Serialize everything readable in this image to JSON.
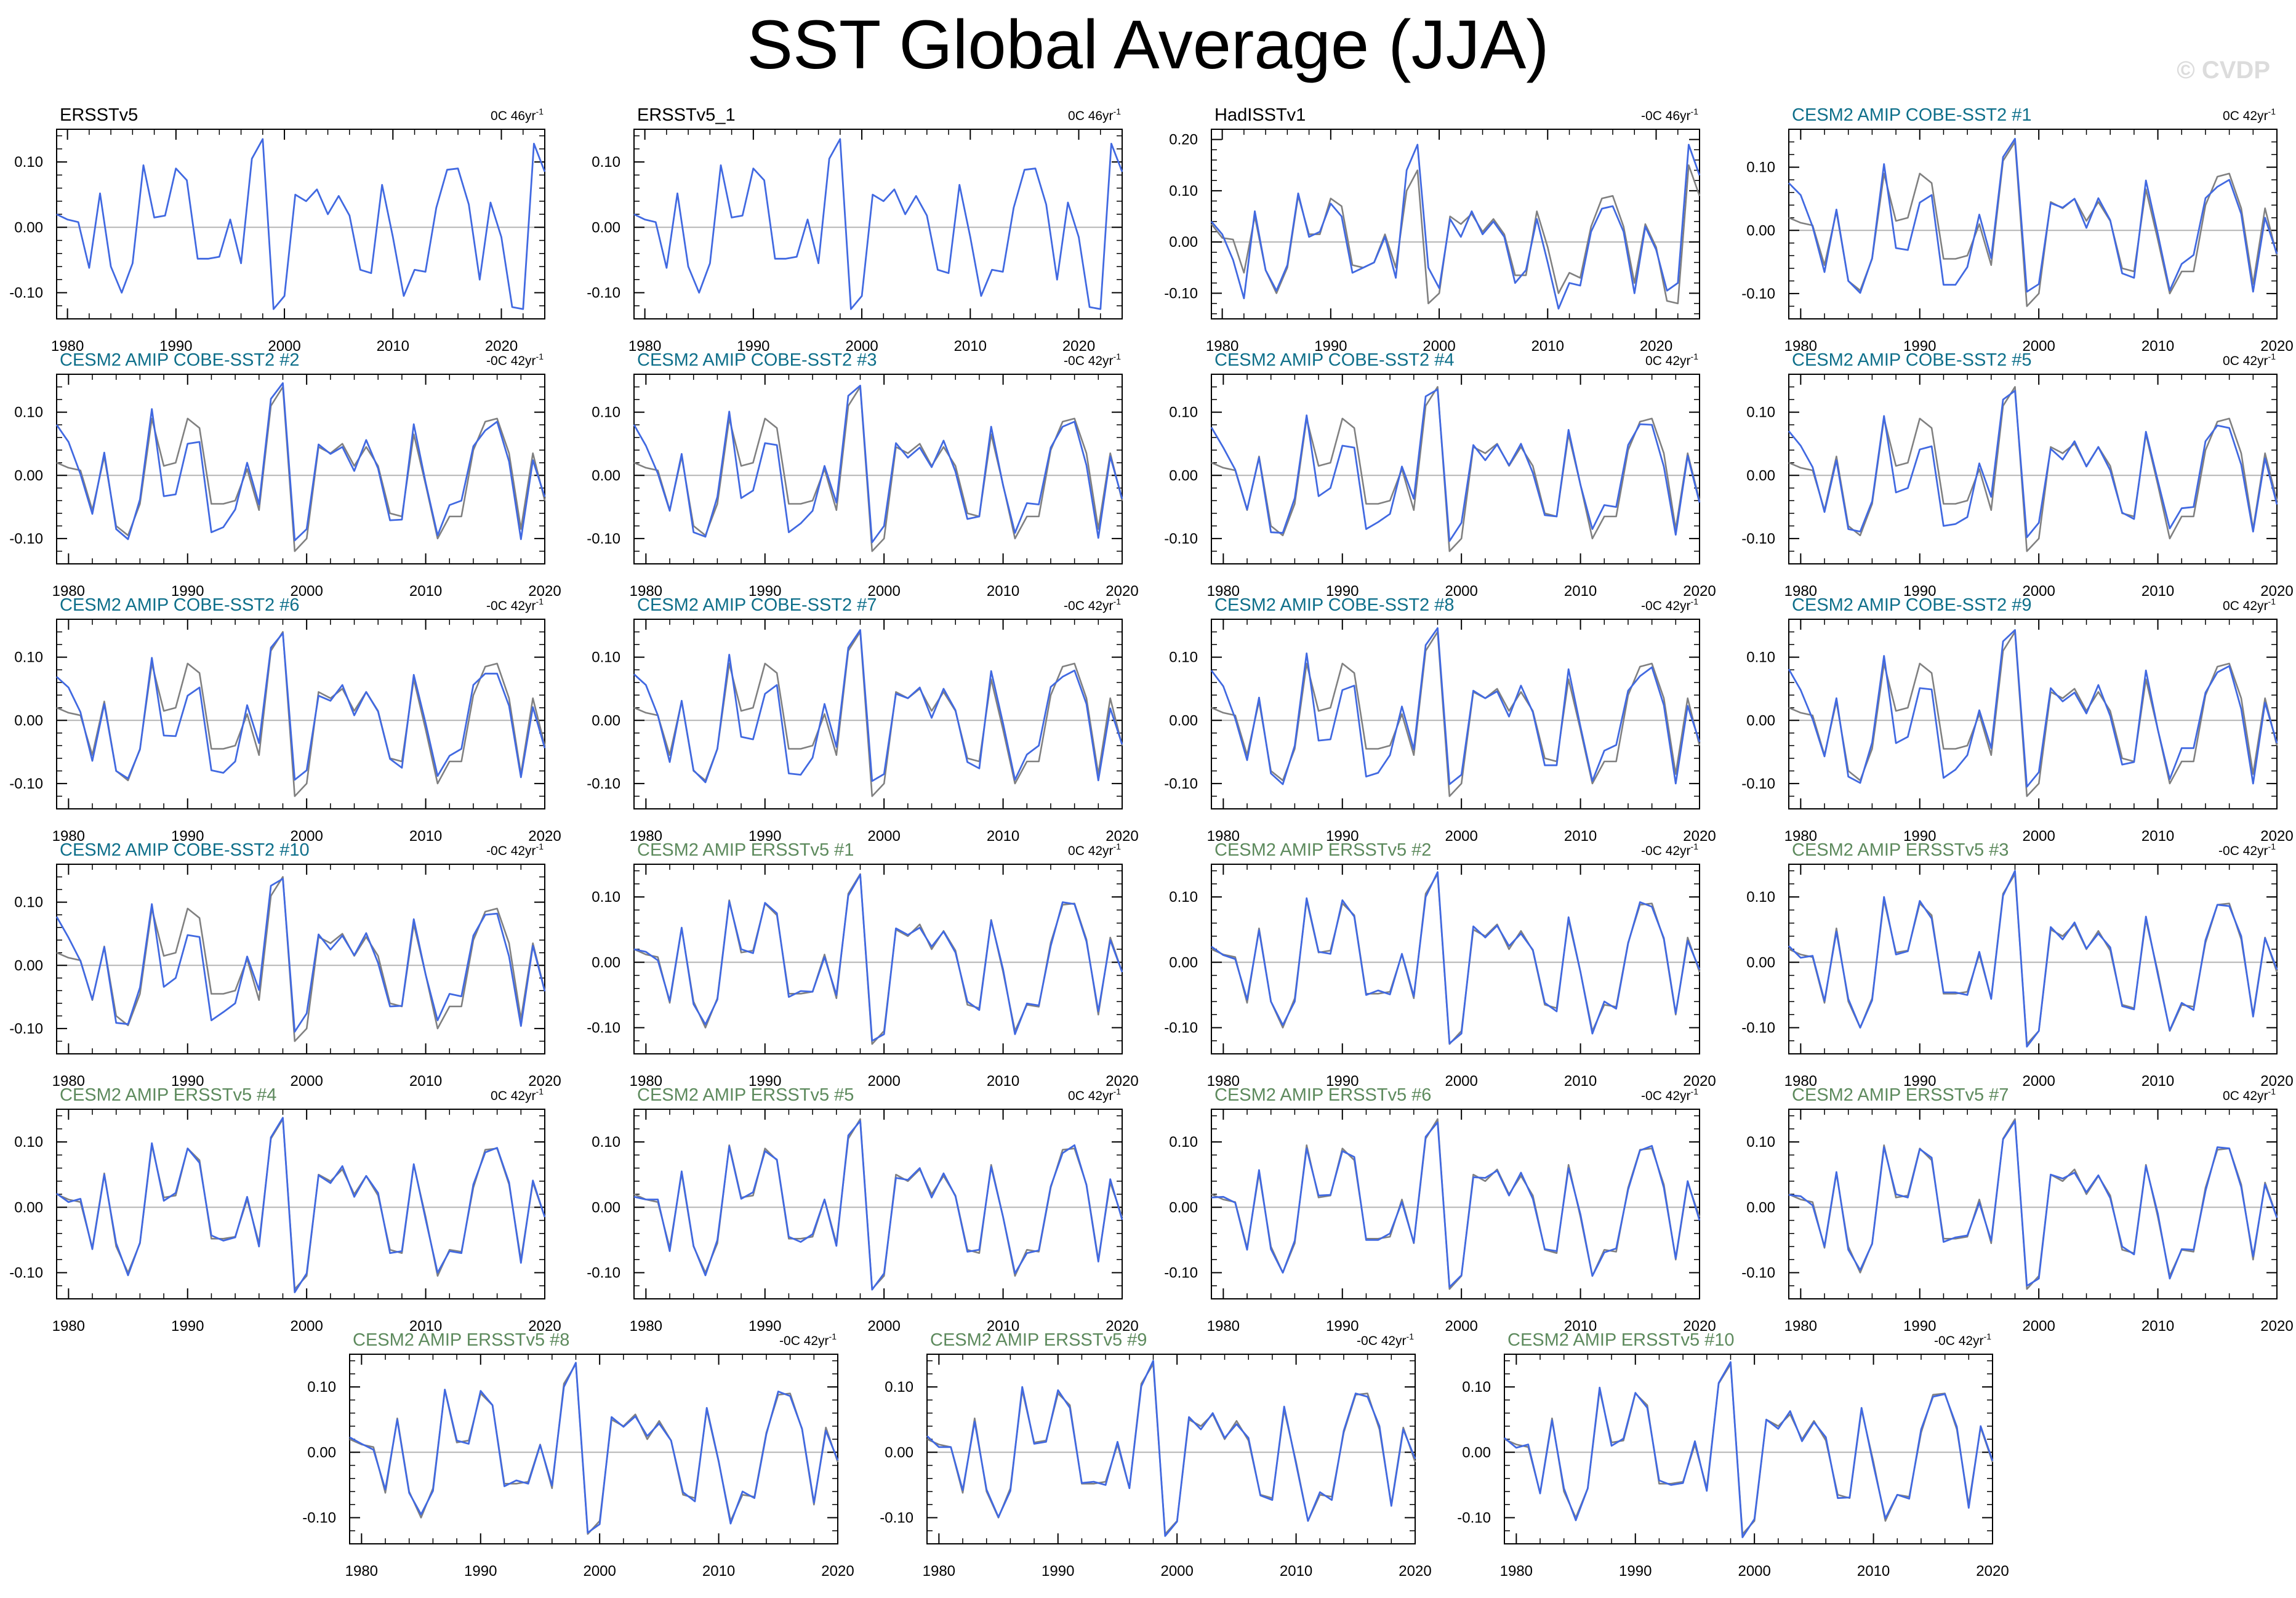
{
  "title": "SST Global Average (JJA)",
  "watermark": "© CVDP",
  "colors": {
    "model_line": "#4169e1",
    "obs_line": "#808080",
    "zero_line": "#b4b4b4",
    "title_obs": "#000000",
    "title_cobe": "#0e6f8a",
    "title_ersst": "#5d8a5d"
  },
  "chart_data": [
    {
      "type": "line",
      "title": "ERSSTv5",
      "title_style": "obs",
      "trend_label": "0C 46yr",
      "x_range": [
        1979,
        2024
      ],
      "ylim": [
        -0.14,
        0.15
      ],
      "yticks": [
        -0.1,
        0.0,
        0.1
      ],
      "ytick_labels": [
        "-0.10",
        "0.00",
        "0.10"
      ],
      "xticks": [
        1980,
        1990,
        2000,
        2010,
        2020
      ],
      "reference_series": false
    },
    {
      "type": "line",
      "title": "ERSSTv5_1",
      "title_style": "obs",
      "trend_label": "0C 46yr",
      "x_range": [
        1979,
        2024
      ],
      "ylim": [
        -0.14,
        0.15
      ],
      "yticks": [
        -0.1,
        0.0,
        0.1
      ],
      "ytick_labels": [
        "-0.10",
        "0.00",
        "0.10"
      ],
      "xticks": [
        1980,
        1990,
        2000,
        2010,
        2020
      ],
      "reference_series": false
    },
    {
      "type": "line",
      "title": "HadISSTv1",
      "title_style": "obs",
      "trend_label": "-0C 46yr",
      "x_range": [
        1979,
        2024
      ],
      "ylim": [
        -0.15,
        0.22
      ],
      "yticks": [
        -0.1,
        0.0,
        0.1,
        0.2
      ],
      "ytick_labels": [
        "-0.10",
        "0.00",
        "0.10",
        "0.20"
      ],
      "xticks": [
        1980,
        1990,
        2000,
        2010,
        2020
      ],
      "reference_series": true
    },
    {
      "type": "line",
      "title": "CESM2 AMIP COBE-SST2 #1",
      "title_style": "cobe",
      "trend_label": "0C 42yr",
      "x_range": [
        1979,
        2020
      ],
      "ylim": [
        -0.14,
        0.16
      ],
      "yticks": [
        -0.1,
        0.0,
        0.1
      ],
      "ytick_labels": [
        "-0.10",
        "0.00",
        "0.10"
      ],
      "xticks": [
        1980,
        1990,
        2000,
        2010,
        2020
      ],
      "reference_series": true
    },
    {
      "type": "line",
      "title": "CESM2 AMIP COBE-SST2 #2",
      "title_style": "cobe",
      "trend_label": "-0C 42yr",
      "x_range": [
        1979,
        2020
      ],
      "ylim": [
        -0.14,
        0.16
      ],
      "yticks": [
        -0.1,
        0.0,
        0.1
      ],
      "ytick_labels": [
        "-0.10",
        "0.00",
        "0.10"
      ],
      "xticks": [
        1980,
        1990,
        2000,
        2010,
        2020
      ],
      "reference_series": true
    },
    {
      "type": "line",
      "title": "CESM2 AMIP COBE-SST2 #3",
      "title_style": "cobe",
      "trend_label": "-0C 42yr",
      "x_range": [
        1979,
        2020
      ],
      "ylim": [
        -0.14,
        0.16
      ],
      "yticks": [
        -0.1,
        0.0,
        0.1
      ],
      "ytick_labels": [
        "-0.10",
        "0.00",
        "0.10"
      ],
      "xticks": [
        1980,
        1990,
        2000,
        2010,
        2020
      ],
      "reference_series": true
    },
    {
      "type": "line",
      "title": "CESM2 AMIP COBE-SST2 #4",
      "title_style": "cobe",
      "trend_label": "0C 42yr",
      "x_range": [
        1979,
        2020
      ],
      "ylim": [
        -0.14,
        0.16
      ],
      "yticks": [
        -0.1,
        0.0,
        0.1
      ],
      "ytick_labels": [
        "-0.10",
        "0.00",
        "0.10"
      ],
      "xticks": [
        1980,
        1990,
        2000,
        2010,
        2020
      ],
      "reference_series": true
    },
    {
      "type": "line",
      "title": "CESM2 AMIP COBE-SST2 #5",
      "title_style": "cobe",
      "trend_label": "0C 42yr",
      "x_range": [
        1979,
        2020
      ],
      "ylim": [
        -0.14,
        0.16
      ],
      "yticks": [
        -0.1,
        0.0,
        0.1
      ],
      "ytick_labels": [
        "-0.10",
        "0.00",
        "0.10"
      ],
      "xticks": [
        1980,
        1990,
        2000,
        2010,
        2020
      ],
      "reference_series": true
    },
    {
      "type": "line",
      "title": "CESM2 AMIP COBE-SST2 #6",
      "title_style": "cobe",
      "trend_label": "-0C 42yr",
      "x_range": [
        1979,
        2020
      ],
      "ylim": [
        -0.14,
        0.16
      ],
      "yticks": [
        -0.1,
        0.0,
        0.1
      ],
      "ytick_labels": [
        "-0.10",
        "0.00",
        "0.10"
      ],
      "xticks": [
        1980,
        1990,
        2000,
        2010,
        2020
      ],
      "reference_series": true
    },
    {
      "type": "line",
      "title": "CESM2 AMIP COBE-SST2 #7",
      "title_style": "cobe",
      "trend_label": "-0C 42yr",
      "x_range": [
        1979,
        2020
      ],
      "ylim": [
        -0.14,
        0.16
      ],
      "yticks": [
        -0.1,
        0.0,
        0.1
      ],
      "ytick_labels": [
        "-0.10",
        "0.00",
        "0.10"
      ],
      "xticks": [
        1980,
        1990,
        2000,
        2010,
        2020
      ],
      "reference_series": true
    },
    {
      "type": "line",
      "title": "CESM2 AMIP COBE-SST2 #8",
      "title_style": "cobe",
      "trend_label": "-0C 42yr",
      "x_range": [
        1979,
        2020
      ],
      "ylim": [
        -0.14,
        0.16
      ],
      "yticks": [
        -0.1,
        0.0,
        0.1
      ],
      "ytick_labels": [
        "-0.10",
        "0.00",
        "0.10"
      ],
      "xticks": [
        1980,
        1990,
        2000,
        2010,
        2020
      ],
      "reference_series": true
    },
    {
      "type": "line",
      "title": "CESM2 AMIP COBE-SST2 #9",
      "title_style": "cobe",
      "trend_label": "0C 42yr",
      "x_range": [
        1979,
        2020
      ],
      "ylim": [
        -0.14,
        0.16
      ],
      "yticks": [
        -0.1,
        0.0,
        0.1
      ],
      "ytick_labels": [
        "-0.10",
        "0.00",
        "0.10"
      ],
      "xticks": [
        1980,
        1990,
        2000,
        2010,
        2020
      ],
      "reference_series": true
    },
    {
      "type": "line",
      "title": "CESM2 AMIP COBE-SST2 #10",
      "title_style": "cobe",
      "trend_label": "-0C 42yr",
      "x_range": [
        1979,
        2020
      ],
      "ylim": [
        -0.14,
        0.16
      ],
      "yticks": [
        -0.1,
        0.0,
        0.1
      ],
      "ytick_labels": [
        "-0.10",
        "0.00",
        "0.10"
      ],
      "xticks": [
        1980,
        1990,
        2000,
        2010,
        2020
      ],
      "reference_series": true
    },
    {
      "type": "line",
      "title": "CESM2 AMIP ERSSTv5 #1",
      "title_style": "ersst",
      "trend_label": "0C 42yr",
      "x_range": [
        1979,
        2020
      ],
      "ylim": [
        -0.14,
        0.15
      ],
      "yticks": [
        -0.1,
        0.0,
        0.1
      ],
      "ytick_labels": [
        "-0.10",
        "0.00",
        "0.10"
      ],
      "xticks": [
        1980,
        1990,
        2000,
        2010,
        2020
      ],
      "reference_series": true
    },
    {
      "type": "line",
      "title": "CESM2 AMIP ERSSTv5 #2",
      "title_style": "ersst",
      "trend_label": "-0C 42yr",
      "x_range": [
        1979,
        2020
      ],
      "ylim": [
        -0.14,
        0.15
      ],
      "yticks": [
        -0.1,
        0.0,
        0.1
      ],
      "ytick_labels": [
        "-0.10",
        "0.00",
        "0.10"
      ],
      "xticks": [
        1980,
        1990,
        2000,
        2010,
        2020
      ],
      "reference_series": true
    },
    {
      "type": "line",
      "title": "CESM2 AMIP ERSSTv5 #3",
      "title_style": "ersst",
      "trend_label": "-0C 42yr",
      "x_range": [
        1979,
        2020
      ],
      "ylim": [
        -0.14,
        0.15
      ],
      "yticks": [
        -0.1,
        0.0,
        0.1
      ],
      "ytick_labels": [
        "-0.10",
        "0.00",
        "0.10"
      ],
      "xticks": [
        1980,
        1990,
        2000,
        2010,
        2020
      ],
      "reference_series": true
    },
    {
      "type": "line",
      "title": "CESM2 AMIP ERSSTv5 #4",
      "title_style": "ersst",
      "trend_label": "0C 42yr",
      "x_range": [
        1979,
        2020
      ],
      "ylim": [
        -0.14,
        0.15
      ],
      "yticks": [
        -0.1,
        0.0,
        0.1
      ],
      "ytick_labels": [
        "-0.10",
        "0.00",
        "0.10"
      ],
      "xticks": [
        1980,
        1990,
        2000,
        2010,
        2020
      ],
      "reference_series": true
    },
    {
      "type": "line",
      "title": "CESM2 AMIP ERSSTv5 #5",
      "title_style": "ersst",
      "trend_label": "0C 42yr",
      "x_range": [
        1979,
        2020
      ],
      "ylim": [
        -0.14,
        0.15
      ],
      "yticks": [
        -0.1,
        0.0,
        0.1
      ],
      "ytick_labels": [
        "-0.10",
        "0.00",
        "0.10"
      ],
      "xticks": [
        1980,
        1990,
        2000,
        2010,
        2020
      ],
      "reference_series": true
    },
    {
      "type": "line",
      "title": "CESM2 AMIP ERSSTv5 #6",
      "title_style": "ersst",
      "trend_label": "-0C 42yr",
      "x_range": [
        1979,
        2020
      ],
      "ylim": [
        -0.14,
        0.15
      ],
      "yticks": [
        -0.1,
        0.0,
        0.1
      ],
      "ytick_labels": [
        "-0.10",
        "0.00",
        "0.10"
      ],
      "xticks": [
        1980,
        1990,
        2000,
        2010,
        2020
      ],
      "reference_series": true
    },
    {
      "type": "line",
      "title": "CESM2 AMIP ERSSTv5 #7",
      "title_style": "ersst",
      "trend_label": "0C 42yr",
      "x_range": [
        1979,
        2020
      ],
      "ylim": [
        -0.14,
        0.15
      ],
      "yticks": [
        -0.1,
        0.0,
        0.1
      ],
      "ytick_labels": [
        "-0.10",
        "0.00",
        "0.10"
      ],
      "xticks": [
        1980,
        1990,
        2000,
        2010,
        2020
      ],
      "reference_series": true
    },
    {
      "type": "line",
      "title": "CESM2 AMIP ERSSTv5 #8",
      "title_style": "ersst",
      "trend_label": "-0C 42yr",
      "x_range": [
        1979,
        2020
      ],
      "ylim": [
        -0.14,
        0.15
      ],
      "yticks": [
        -0.1,
        0.0,
        0.1
      ],
      "ytick_labels": [
        "-0.10",
        "0.00",
        "0.10"
      ],
      "xticks": [
        1980,
        1990,
        2000,
        2010,
        2020
      ],
      "reference_series": true
    },
    {
      "type": "line",
      "title": "CESM2 AMIP ERSSTv5 #9",
      "title_style": "ersst",
      "trend_label": "-0C 42yr",
      "x_range": [
        1979,
        2020
      ],
      "ylim": [
        -0.14,
        0.15
      ],
      "yticks": [
        -0.1,
        0.0,
        0.1
      ],
      "ytick_labels": [
        "-0.10",
        "0.00",
        "0.10"
      ],
      "xticks": [
        1980,
        1990,
        2000,
        2010,
        2020
      ],
      "reference_series": true
    },
    {
      "type": "line",
      "title": "CESM2 AMIP ERSSTv5 #10",
      "title_style": "ersst",
      "trend_label": "-0C 42yr",
      "x_range": [
        1979,
        2020
      ],
      "ylim": [
        -0.14,
        0.15
      ],
      "yticks": [
        -0.1,
        0.0,
        0.1
      ],
      "ytick_labels": [
        "-0.10",
        "0.00",
        "0.10"
      ],
      "xticks": [
        1980,
        1990,
        2000,
        2010,
        2020
      ],
      "reference_series": true
    }
  ],
  "series_values": {
    "ersst_obs": [
      0.02,
      0.012,
      0.008,
      -0.062,
      0.052,
      -0.06,
      -0.1,
      -0.055,
      0.095,
      0.015,
      0.018,
      0.09,
      0.072,
      -0.048,
      -0.048,
      -0.045,
      0.012,
      -0.055,
      0.105,
      0.135,
      -0.125,
      -0.105,
      0.05,
      0.04,
      0.058,
      0.02,
      0.048,
      0.018,
      -0.065,
      -0.07,
      0.065,
      -0.015,
      -0.105,
      -0.065,
      -0.068,
      0.03,
      0.088,
      0.09,
      0.035,
      -0.08,
      0.038,
      -0.015,
      -0.122,
      -0.125,
      0.128,
      0.085
    ],
    "hadisst_obs": [
      0.035,
      0.008,
      0.005,
      -0.06,
      0.05,
      -0.055,
      -0.1,
      -0.05,
      0.09,
      0.015,
      0.015,
      0.085,
      0.07,
      -0.045,
      -0.05,
      -0.04,
      0.015,
      -0.05,
      0.1,
      0.14,
      -0.12,
      -0.1,
      0.05,
      0.035,
      0.055,
      0.02,
      0.045,
      0.015,
      -0.065,
      -0.065,
      0.06,
      -0.01,
      -0.1,
      -0.06,
      -0.07,
      0.03,
      0.085,
      0.09,
      0.03,
      -0.08,
      0.035,
      -0.01,
      -0.115,
      -0.12,
      0.15,
      0.09
    ],
    "hadisst_model": [
      0.04,
      0.015,
      -0.035,
      -0.11,
      0.06,
      -0.055,
      -0.095,
      -0.045,
      0.095,
      0.01,
      0.02,
      0.075,
      0.05,
      -0.06,
      -0.05,
      -0.04,
      0.01,
      -0.07,
      0.14,
      0.19,
      -0.05,
      -0.09,
      0.045,
      0.01,
      0.06,
      0.015,
      0.04,
      0.01,
      -0.08,
      -0.055,
      0.045,
      -0.04,
      -0.13,
      -0.08,
      -0.085,
      0.02,
      0.065,
      0.07,
      0.02,
      -0.1,
      0.03,
      -0.015,
      -0.095,
      -0.08,
      0.19,
      0.13
    ],
    "ersst_ref_42": [
      0.02,
      0.012,
      0.008,
      -0.062,
      0.052,
      -0.06,
      -0.1,
      -0.055,
      0.095,
      0.015,
      0.018,
      0.09,
      0.072,
      -0.048,
      -0.048,
      -0.045,
      0.012,
      -0.055,
      0.105,
      0.135,
      -0.125,
      -0.105,
      0.05,
      0.04,
      0.058,
      0.02,
      0.048,
      0.018,
      -0.065,
      -0.07,
      0.065,
      -0.015,
      -0.105,
      -0.065,
      -0.068,
      0.03,
      0.088,
      0.09,
      0.035,
      -0.08,
      0.038,
      -0.015
    ],
    "cobe_obs_42": [
      0.02,
      0.012,
      0.008,
      -0.055,
      0.03,
      -0.08,
      -0.095,
      -0.045,
      0.09,
      0.015,
      0.02,
      0.09,
      0.075,
      -0.045,
      -0.045,
      -0.04,
      0.01,
      -0.055,
      0.11,
      0.14,
      -0.12,
      -0.1,
      0.045,
      0.035,
      0.05,
      0.015,
      0.045,
      0.015,
      -0.06,
      -0.065,
      0.065,
      -0.015,
      -0.1,
      -0.065,
      -0.065,
      0.04,
      0.085,
      0.09,
      0.035,
      -0.085,
      0.035,
      -0.04
    ],
    "cobe_model_42": [
      0.075,
      0.05,
      0.008,
      -0.06,
      0.03,
      -0.085,
      -0.095,
      -0.04,
      0.1,
      -0.03,
      -0.025,
      0.045,
      0.05,
      -0.085,
      -0.08,
      -0.06,
      0.02,
      -0.04,
      0.12,
      0.14,
      -0.1,
      -0.08,
      0.045,
      0.03,
      0.05,
      0.01,
      0.05,
      0.01,
      -0.065,
      -0.07,
      0.075,
      -0.01,
      -0.09,
      -0.05,
      -0.045,
      0.05,
      0.075,
      0.08,
      0.02,
      -0.095,
      0.025,
      -0.04
    ]
  }
}
